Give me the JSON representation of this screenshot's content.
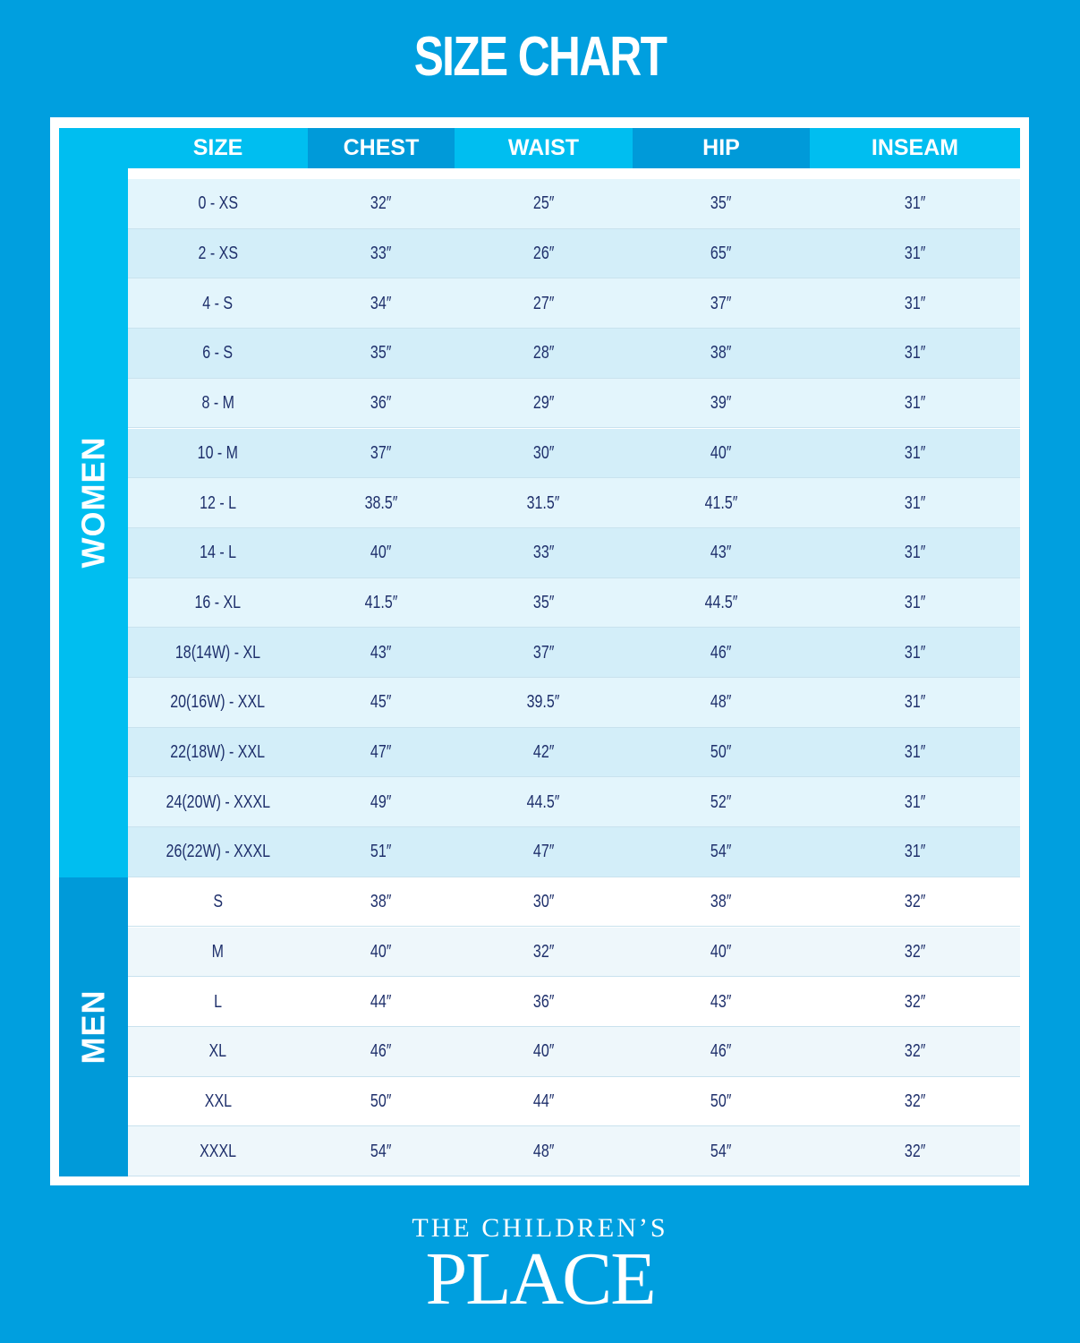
{
  "header": {
    "title": "SIZE CHART"
  },
  "table": {
    "columns": [
      "SIZE",
      "CHEST",
      "WAIST",
      "HIP",
      "INSEAM"
    ],
    "groups": [
      {
        "label": "WOMEN",
        "rows": [
          [
            "0 - XS",
            "32″",
            "25″",
            "35″",
            "31″"
          ],
          [
            "2 - XS",
            "33″",
            "26″",
            "65″",
            "31″"
          ],
          [
            "4 - S",
            "34″",
            "27″",
            "37″",
            "31″"
          ],
          [
            "6 - S",
            "35″",
            "28″",
            "38″",
            "31″"
          ],
          [
            "8 - M",
            "36″",
            "29″",
            "39″",
            "31″"
          ],
          [
            "10 - M",
            "37″",
            "30″",
            "40″",
            "31″"
          ],
          [
            "12 - L",
            "38.5″",
            "31.5″",
            "41.5″",
            "31″"
          ],
          [
            "14 - L",
            "40″",
            "33″",
            "43″",
            "31″"
          ],
          [
            "16 - XL",
            "41.5″",
            "35″",
            "44.5″",
            "31″"
          ],
          [
            "18(14W) - XL",
            "43″",
            "37″",
            "46″",
            "31″"
          ],
          [
            "20(16W) - XXL",
            "45″",
            "39.5″",
            "48″",
            "31″"
          ],
          [
            "22(18W) - XXL",
            "47″",
            "42″",
            "50″",
            "31″"
          ],
          [
            "24(20W) - XXXL",
            "49″",
            "44.5″",
            "52″",
            "31″"
          ],
          [
            "26(22W) - XXXL",
            "51″",
            "47″",
            "54″",
            "31″"
          ]
        ]
      },
      {
        "label": "MEN",
        "rows": [
          [
            "S",
            "38″",
            "30″",
            "38″",
            "32″"
          ],
          [
            "M",
            "40″",
            "32″",
            "40″",
            "32″"
          ],
          [
            "L",
            "44″",
            "36″",
            "43″",
            "32″"
          ],
          [
            "XL",
            "46″",
            "40″",
            "46″",
            "32″"
          ],
          [
            "XXL",
            "50″",
            "44″",
            "50″",
            "32″"
          ],
          [
            "XXXL",
            "54″",
            "48″",
            "54″",
            "32″"
          ]
        ]
      }
    ]
  },
  "logo": {
    "line1": "THE CHILDREN’S",
    "line2": "PLACE"
  }
}
